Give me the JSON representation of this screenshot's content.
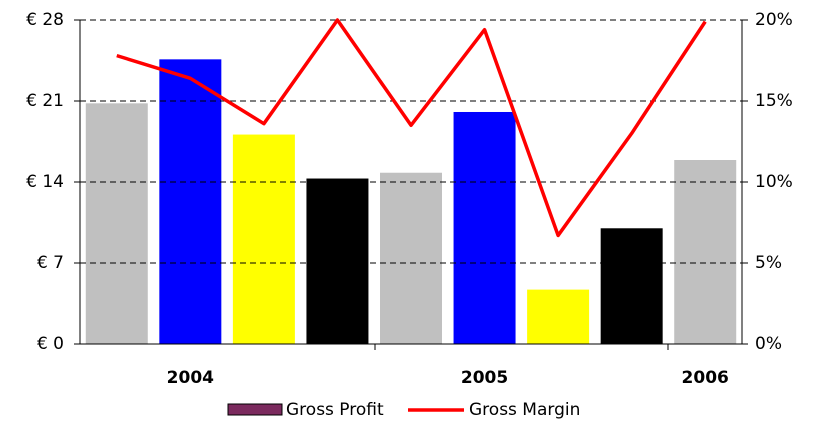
{
  "chart_data": {
    "type": "bar",
    "categories": [
      null,
      "2004",
      null,
      null,
      null,
      "2005",
      null,
      null,
      "2006"
    ],
    "series": [
      {
        "name": "Gross Profit",
        "color": "#7b2a5e",
        "colors": [
          "#c0c0c0",
          "#0000ff",
          "#ffff00",
          "#000000",
          "#c0c0c0",
          "#0000ff",
          "#ffff00",
          "#000000",
          "#c0c0c0"
        ],
        "values": [
          20.8,
          24.6,
          18.1,
          14.3,
          14.8,
          20.05,
          4.7,
          10.0,
          15.9
        ]
      },
      {
        "name": "Gross Margin",
        "type": "line",
        "axis": "y2",
        "color": "#ff0000",
        "values": [
          17.8,
          16.4,
          13.6,
          20,
          13.5,
          19.4,
          6.7,
          13.0,
          19.9
        ]
      }
    ],
    "ylim": [
      0,
      28
    ],
    "yticks": [
      {
        "value": 0,
        "label": "€ 0"
      },
      {
        "value": 7,
        "label": "€ 7"
      },
      {
        "value": 14,
        "label": "€ 14"
      },
      {
        "value": 21,
        "label": "€ 21"
      },
      {
        "value": 28,
        "label": "€ 28"
      }
    ],
    "y2lim": [
      0,
      20
    ],
    "y2ticks": [
      {
        "value": 0,
        "label": "0%"
      },
      {
        "value": 5,
        "label": "5%"
      },
      {
        "value": 10,
        "label": "10%"
      },
      {
        "value": 15,
        "label": "15%"
      },
      {
        "value": 20,
        "label": "20%"
      }
    ],
    "grid": true,
    "legend": "bottom"
  }
}
